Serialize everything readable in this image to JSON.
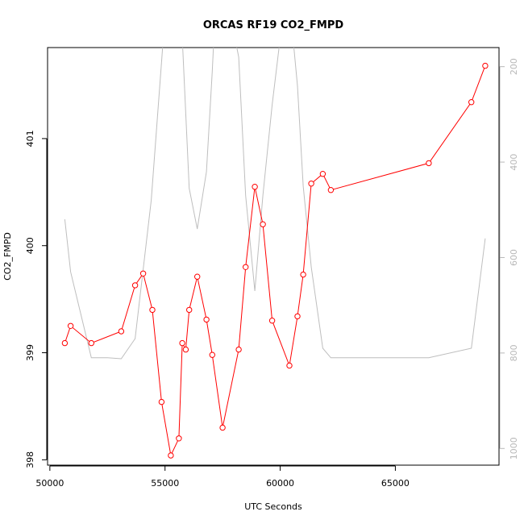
{
  "chart_data": {
    "type": "line",
    "title": "ORCAS RF19 CO2_FMPD",
    "xlabel": "UTC Seconds",
    "ylabel": "CO2_FMPD",
    "xlim": [
      49900,
      69500
    ],
    "ylim": [
      397.95,
      401.85
    ],
    "x_ticks": [
      50000,
      55000,
      60000,
      65000
    ],
    "y_ticks": [
      398,
      399,
      400,
      401
    ],
    "y2lim": [
      1035,
      160
    ],
    "y2_ticks": [
      200,
      400,
      600,
      800,
      1000
    ],
    "grid": false,
    "series": [
      {
        "color": "#ff0000",
        "markers": "open-circle",
        "x": [
          50650,
          50900,
          51800,
          53100,
          53700,
          54050,
          54450,
          54850,
          55250,
          55600,
          55750,
          55900,
          56050,
          56400,
          56800,
          57050,
          57500,
          58200,
          58500,
          58900,
          59250,
          59650,
          60400,
          60750,
          61000,
          61350,
          61850,
          62200,
          66450,
          68300,
          68900
        ],
        "y": [
          399.09,
          399.25,
          399.09,
          399.2,
          399.63,
          399.74,
          399.4,
          398.54,
          398.04,
          398.2,
          399.09,
          399.03,
          399.4,
          399.71,
          399.31,
          398.98,
          398.3,
          399.03,
          399.8,
          400.55,
          400.2,
          399.3,
          398.88,
          399.34,
          399.73,
          400.58,
          400.67,
          400.52,
          400.77,
          401.34,
          401.68
        ]
      },
      {
        "color": "#bebebe",
        "axis": "right",
        "x": [
          50650,
          50900,
          51800,
          52500,
          53100,
          53700,
          54400,
          54850,
          55050,
          55600,
          55750,
          56050,
          56400,
          56800,
          57050,
          57200,
          57700,
          58200,
          58500,
          58900,
          59250,
          59650,
          60200,
          60400,
          60750,
          61000,
          61350,
          61850,
          62200,
          66450,
          68300,
          68900
        ],
        "y": [
          520,
          630,
          810,
          810,
          812,
          770,
          480,
          190,
          60,
          60,
          140,
          455,
          540,
          420,
          210,
          60,
          60,
          180,
          470,
          670,
          470,
          280,
          60,
          60,
          240,
          450,
          620,
          790,
          810,
          810,
          790,
          560
        ]
      }
    ]
  }
}
